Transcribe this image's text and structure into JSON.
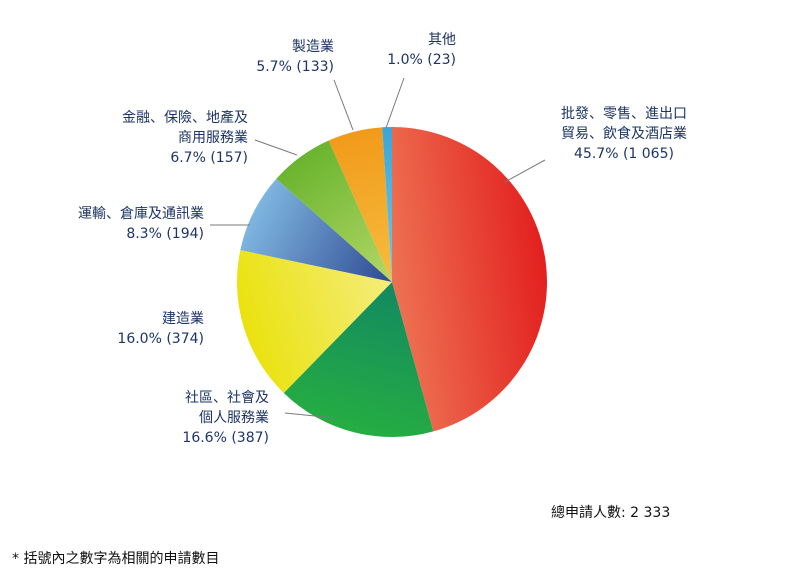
{
  "chart_data": {
    "type": "pie",
    "title": "",
    "slices": [
      {
        "name_lines": [
          "批發、零售、進出口",
          "貿易、飲食及酒店業"
        ],
        "label": "45.7% (1 065)",
        "percent": 45.7,
        "count": 1065,
        "color_start": "#f08a62",
        "color_end": "#e3201f"
      },
      {
        "name_lines": [
          "社區、社會及",
          "個人服務業"
        ],
        "label": "16.6% (387)",
        "percent": 16.6,
        "count": 387,
        "color_start": "#0c7e6b",
        "color_end": "#26ad42"
      },
      {
        "name_lines": [
          "建造業"
        ],
        "label": "16.0% (374)",
        "percent": 16.0,
        "count": 374,
        "color_start": "#f8f09c",
        "color_end": "#eae20e"
      },
      {
        "name_lines": [
          "運輸、倉庫及通訊業"
        ],
        "label": "8.3% (194)",
        "percent": 8.3,
        "count": 194,
        "color_start": "#16287a",
        "color_end": "#7fb6e0"
      },
      {
        "name_lines": [
          "金融、保險、地產及",
          "商用服務業"
        ],
        "label": "6.7% (157)",
        "percent": 6.7,
        "count": 157,
        "color_start": "#c9e278",
        "color_end": "#6ab42e"
      },
      {
        "name_lines": [
          "製造業"
        ],
        "label": "5.7% (133)",
        "percent": 5.7,
        "count": 133,
        "color_start": "#f9c74a",
        "color_end": "#f19a1a"
      },
      {
        "name_lines": [
          "其他"
        ],
        "label": "1.0% (23)",
        "percent": 1.0,
        "count": 23,
        "color_start": "#7fd4ef",
        "color_end": "#3aa5d8"
      }
    ],
    "total_label": "總申請人數: 2 333",
    "total": 2333,
    "footnote": "* 括號內之數字為相關的申請數目",
    "leader_line_color": "#7a7a7a"
  }
}
